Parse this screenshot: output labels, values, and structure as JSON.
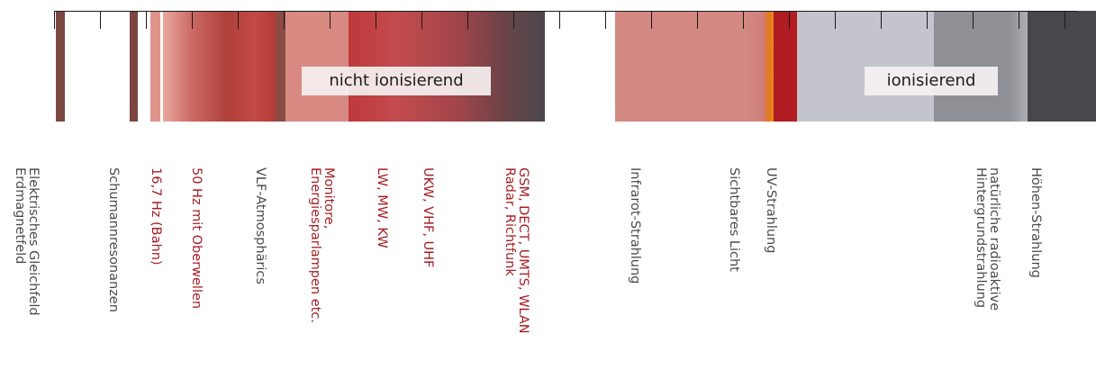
{
  "band_labels": {
    "nicht_ionisierend": "nicht ionisierend",
    "ionisierend": "ionisierend"
  },
  "colors": {
    "dark_brown": "#7a4840",
    "light_red": "#e0938a",
    "pale_red": "#d88a82",
    "red_mid": "#b03a36",
    "red_strong": "#c0393b",
    "charcoal": "#4a474c",
    "salmon": "#d38882",
    "orange": "#e07a1c",
    "crimson": "#b01c22",
    "light_gray": "#c4c4cc",
    "mid_gray": "#8f8f96",
    "label_red": "#a61d24",
    "label_gray": "#4a4a4a"
  },
  "labels": [
    {
      "name": "gleichfeld",
      "text": "Elektrisches Gleichfeld\nErdmagnetfeld",
      "color": "gray"
    },
    {
      "name": "schumann",
      "text": "Schumannresonanzen",
      "color": "gray"
    },
    {
      "name": "bahn",
      "text": "16,7 Hz (Bahn)",
      "color": "red"
    },
    {
      "name": "oberwellen",
      "text": "50 Hz mit Oberwellen",
      "color": "red"
    },
    {
      "name": "vlf",
      "text": "VLF-Atmosphärics",
      "color": "gray"
    },
    {
      "name": "monitore",
      "text": "Monitore,\nEnergiesparlampen etc.",
      "color": "red"
    },
    {
      "name": "lw-mw-kw",
      "text": "LW, MW, KW",
      "color": "red"
    },
    {
      "name": "ukw",
      "text": "UKW, VHF, UHF",
      "color": "red"
    },
    {
      "name": "gsm",
      "text": "GSM, DECT, UMTS, WLAN\nRadar, Richtfunk",
      "color": "red"
    },
    {
      "name": "infrarot",
      "text": "Infrarot-Strahlung",
      "color": "gray"
    },
    {
      "name": "licht",
      "text": "Sichtbares Licht",
      "color": "gray"
    },
    {
      "name": "uv",
      "text": "UV-Strahlung",
      "color": "gray"
    },
    {
      "name": "radioaktiv",
      "text": "natürliche radioaktive\nHintergrundstrahlung",
      "color": "gray"
    },
    {
      "name": "hoehen",
      "text": "Höhen-Strahlung",
      "color": "gray"
    }
  ]
}
